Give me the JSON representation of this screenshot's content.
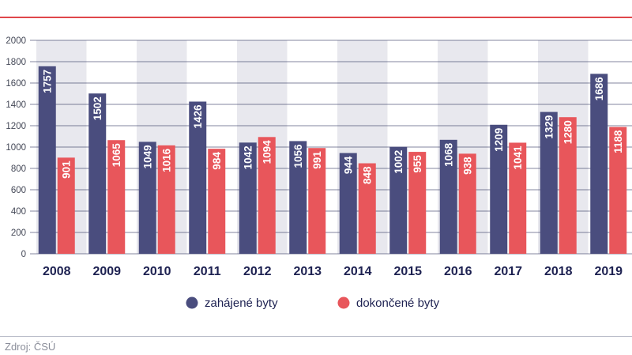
{
  "title_fragment": "",
  "source": "Zdroj: ČSÚ",
  "chart_data": {
    "type": "bar",
    "categories": [
      "2008",
      "2009",
      "2010",
      "2011",
      "2012",
      "2013",
      "2014",
      "2015",
      "2016",
      "2017",
      "2018",
      "2019"
    ],
    "series": [
      {
        "name": "zahájené byty",
        "color": "#4a4d7e",
        "values": [
          1757,
          1502,
          1049,
          1426,
          1042,
          1056,
          944,
          1002,
          1068,
          1209,
          1329,
          1686
        ]
      },
      {
        "name": "dokončené byty",
        "color": "#e8565b",
        "values": [
          901,
          1065,
          1016,
          984,
          1094,
          991,
          848,
          955,
          938,
          1041,
          1280,
          1188
        ]
      }
    ],
    "ylim": [
      0,
      2000
    ],
    "yticks": [
      0,
      200,
      400,
      600,
      800,
      1000,
      1200,
      1400,
      1600,
      1800,
      2000
    ],
    "grid": true,
    "band_color": "#e8e8ee",
    "legend_position": "bottom-center",
    "xlabel": "",
    "ylabel": ""
  }
}
